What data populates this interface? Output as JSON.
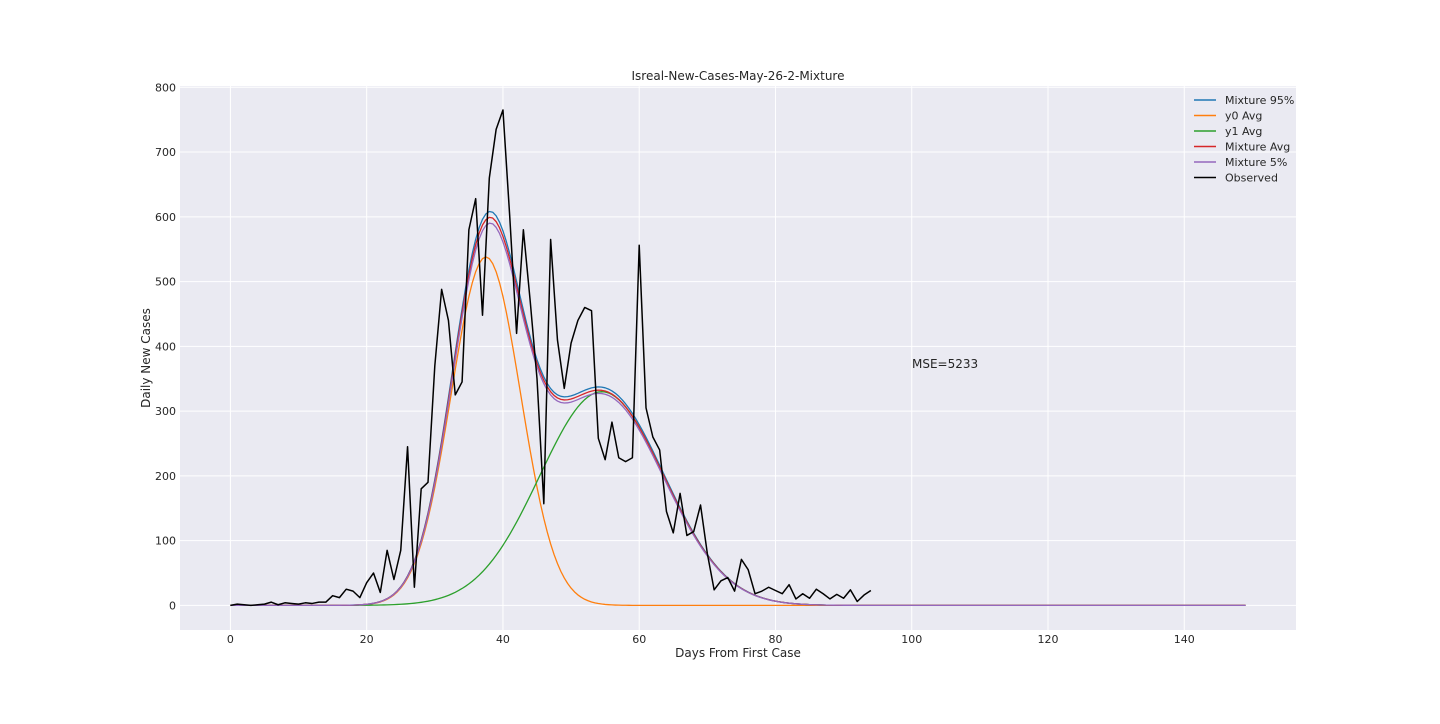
{
  "chart_data": {
    "type": "line",
    "title": "Isreal-New-Cases-May-26-2-Mixture",
    "xlabel": "Days From First Case",
    "ylabel": "Daily New Cases",
    "xlim": [
      -7.4,
      156.4
    ],
    "ylim": [
      -38,
      802
    ],
    "xticks": [
      0,
      20,
      40,
      60,
      80,
      100,
      120,
      140
    ],
    "yticks": [
      0,
      100,
      200,
      300,
      400,
      500,
      600,
      700,
      800
    ],
    "grid": true,
    "legend_position": "top-right",
    "annotation": {
      "text": "MSE=5233",
      "x": 100,
      "y": 370
    },
    "colors": {
      "background": "#eaeaf2",
      "grid": "#ffffff",
      "mixture95": "#1f77b4",
      "y0": "#ff7f0e",
      "y1": "#2ca02c",
      "mixtureAvg": "#d62728",
      "mixture5": "#9467bd",
      "observed": "#000000"
    },
    "model_curves": {
      "x_max": 149,
      "y0": {
        "amplitude": 538,
        "peak_day": 37.5,
        "width": 5.1
      },
      "y1": {
        "amplitude": 330,
        "peak_day": 54.5,
        "width": 9.1
      },
      "mixture95_scale": 1.015,
      "mixture5_scale": 0.985
    },
    "series": [
      {
        "name": "Mixture 95%",
        "key": "mixture95"
      },
      {
        "name": "y0 Avg",
        "key": "y0"
      },
      {
        "name": "y1 Avg",
        "key": "y1"
      },
      {
        "name": "Mixture Avg",
        "key": "mixtureAvg"
      },
      {
        "name": "Mixture 5%",
        "key": "mixture5"
      },
      {
        "name": "Observed",
        "key": "observed",
        "x": [
          0,
          1,
          2,
          3,
          4,
          5,
          6,
          7,
          8,
          9,
          10,
          11,
          12,
          13,
          14,
          15,
          16,
          17,
          18,
          19,
          20,
          21,
          22,
          23,
          24,
          25,
          26,
          27,
          28,
          29,
          30,
          31,
          32,
          33,
          34,
          35,
          36,
          37,
          38,
          39,
          40,
          41,
          42,
          43,
          44,
          45,
          46,
          47,
          48,
          49,
          50,
          51,
          52,
          53,
          54,
          55,
          56,
          57,
          58,
          59,
          60,
          61,
          62,
          63,
          64,
          65,
          66,
          67,
          68,
          69,
          70,
          71,
          72,
          73,
          74,
          75,
          76,
          77,
          78,
          79,
          80,
          81,
          82,
          83,
          84,
          85,
          86,
          87,
          88,
          89,
          90,
          91,
          92,
          93,
          94
        ],
        "values": [
          0,
          2,
          1,
          0,
          1,
          2,
          5,
          1,
          4,
          3,
          2,
          4,
          3,
          5,
          5,
          15,
          12,
          25,
          22,
          12,
          35,
          50,
          20,
          85,
          40,
          85,
          245,
          28,
          180,
          190,
          370,
          488,
          440,
          325,
          345,
          580,
          628,
          448,
          660,
          735,
          765,
          600,
          420,
          580,
          470,
          350,
          157,
          565,
          410,
          335,
          405,
          440,
          460,
          455,
          258,
          225,
          283,
          228,
          222,
          228,
          556,
          305,
          260,
          240,
          145,
          112,
          173,
          108,
          114,
          155,
          80,
          24,
          38,
          43,
          22,
          71,
          55,
          18,
          22,
          28,
          23,
          18,
          32,
          10,
          18,
          11,
          25,
          18,
          10,
          17,
          11,
          24,
          6,
          16,
          23
        ]
      }
    ]
  }
}
